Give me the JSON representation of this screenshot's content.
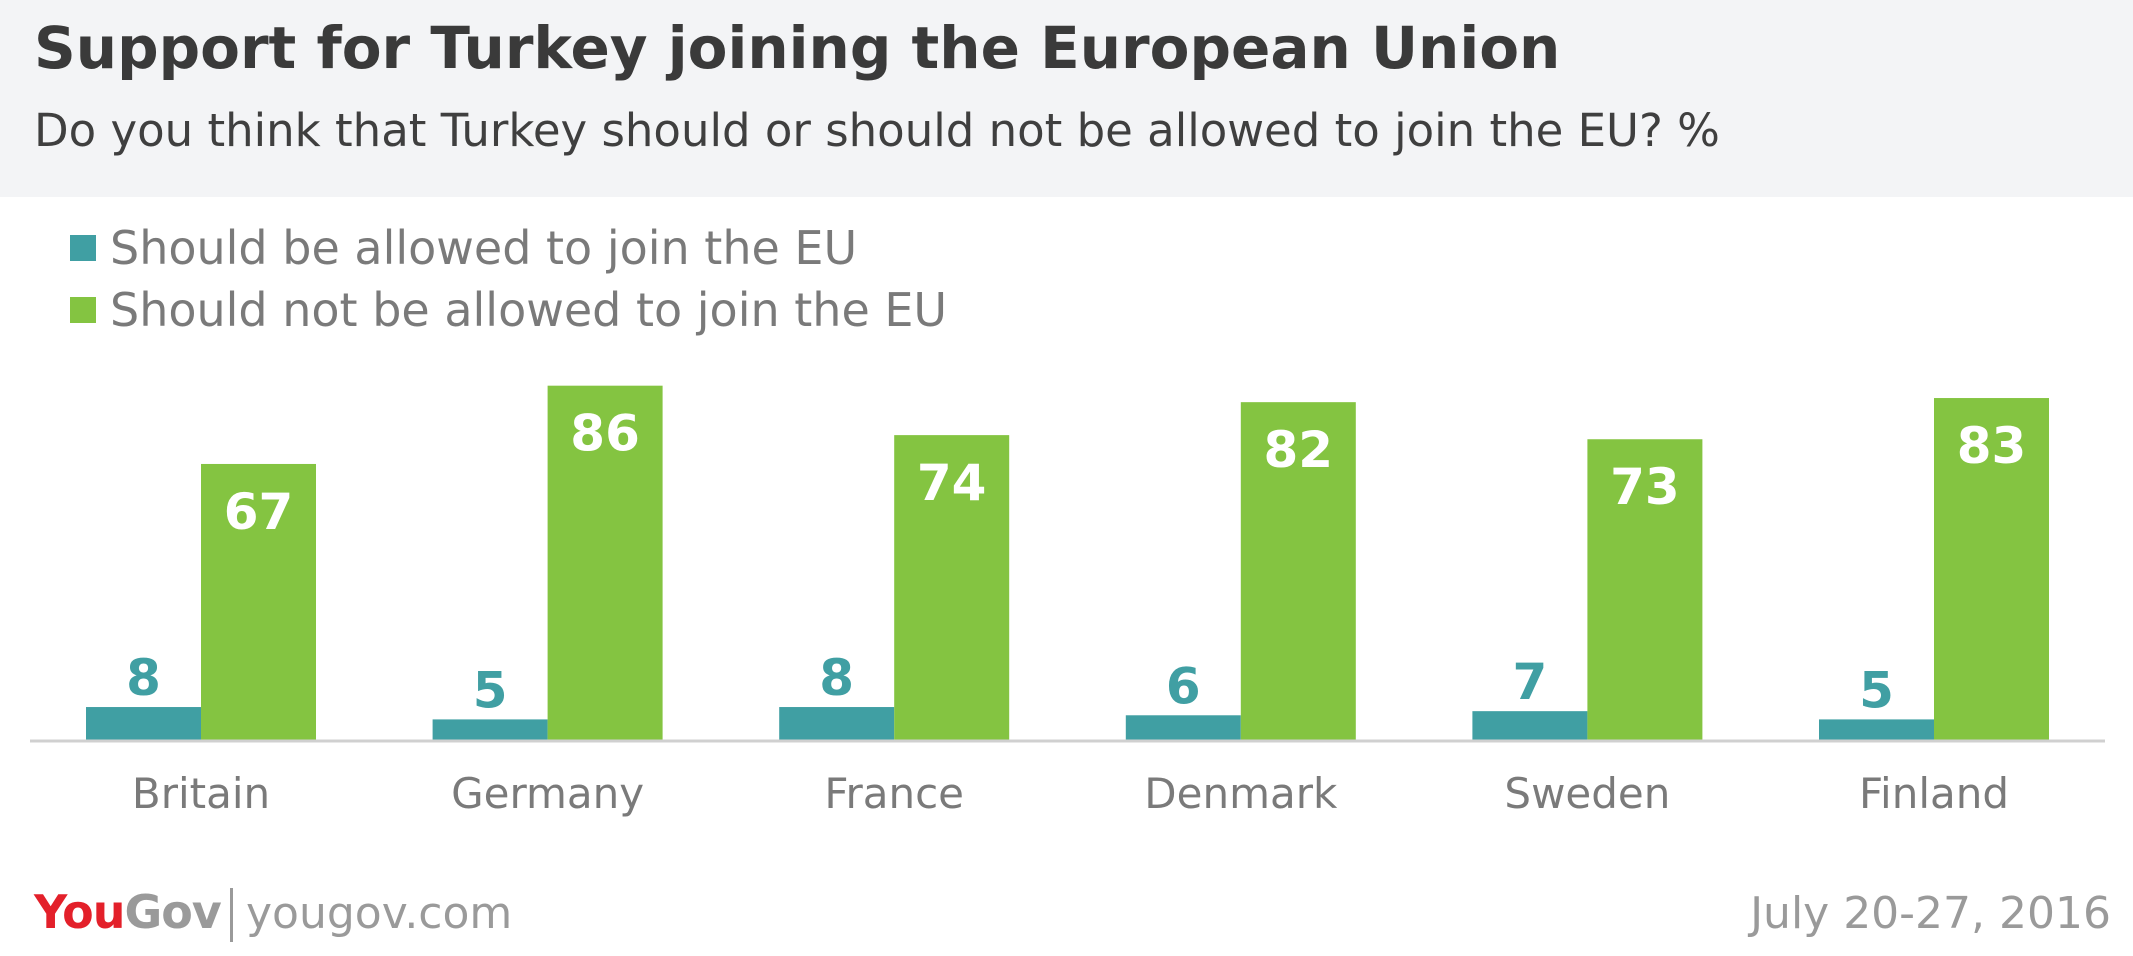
{
  "title": "Support for Turkey joining the European Union",
  "subtitle": "Do you think that Turkey should or should not be allowed to join the EU? %",
  "footer": {
    "logo_you": "You",
    "logo_gov": "Gov",
    "url": "yougov.com",
    "date": "July 20-27, 2016"
  },
  "chart_data": {
    "type": "bar",
    "categories": [
      "Britain",
      "Germany",
      "France",
      "Denmark",
      "Sweden",
      "Finland"
    ],
    "series": [
      {
        "name": "Should be allowed to join the EU",
        "color": "#409fa3",
        "values": [
          8,
          5,
          8,
          6,
          7,
          5
        ]
      },
      {
        "name": "Should not be allowed to join the EU",
        "color": "#84c441",
        "values": [
          67,
          86,
          74,
          82,
          73,
          83
        ]
      }
    ],
    "ylim": [
      0,
      90
    ],
    "grid": false,
    "legend_position": "top-left",
    "data_labels": true
  }
}
